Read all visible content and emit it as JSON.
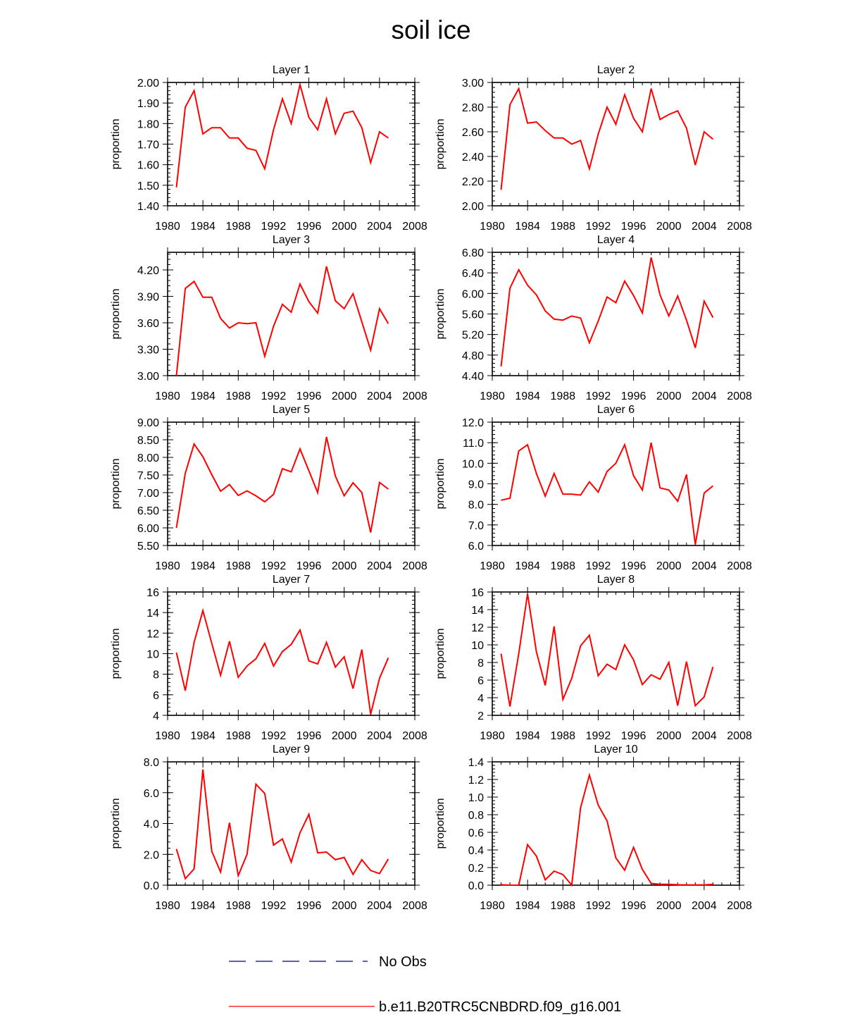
{
  "title": "soil ice",
  "ylabel": "proportion",
  "xlim": [
    1980,
    2008
  ],
  "xticks": [
    "1980",
    "1984",
    "1988",
    "1992",
    "1996",
    "2000",
    "2004",
    "2008"
  ],
  "series_color": "#ff0000",
  "obs_color": "#000080",
  "legend": {
    "obs_label": "No Obs",
    "model_label": "b.e11.B20TRC5CNBDRD.f09_g16.001"
  },
  "chart_data": [
    {
      "type": "line",
      "title": "Layer 1",
      "ylabel": "proportion",
      "ylim": [
        1.4,
        2.0
      ],
      "yticks": [
        "1.40",
        "1.50",
        "1.60",
        "1.70",
        "1.80",
        "1.90",
        "2.00"
      ],
      "ytick_values": [
        1.4,
        1.5,
        1.6,
        1.7,
        1.8,
        1.9,
        2.0
      ],
      "xlim": [
        1980,
        2008
      ],
      "series": [
        {
          "name": "b.e11.B20TRC5CNBDRD.f09_g16.001",
          "x": [
            1981,
            1982,
            1983,
            1984,
            1985,
            1986,
            1987,
            1988,
            1989,
            1990,
            1991,
            1992,
            1993,
            1994,
            1995,
            1996,
            1997,
            1998,
            1999,
            2000,
            2001,
            2002,
            2003,
            2004,
            2005
          ],
          "values": [
            1.49,
            1.88,
            1.96,
            1.75,
            1.78,
            1.78,
            1.73,
            1.73,
            1.68,
            1.67,
            1.58,
            1.77,
            1.92,
            1.8,
            1.99,
            1.83,
            1.77,
            1.92,
            1.75,
            1.85,
            1.86,
            1.78,
            1.61,
            1.76,
            1.73
          ]
        }
      ]
    },
    {
      "type": "line",
      "title": "Layer 2",
      "ylabel": "proportion",
      "ylim": [
        2.0,
        3.0
      ],
      "yticks": [
        "2.00",
        "2.20",
        "2.40",
        "2.60",
        "2.80",
        "3.00"
      ],
      "ytick_values": [
        2.0,
        2.2,
        2.4,
        2.6,
        2.8,
        3.0
      ],
      "xlim": [
        1980,
        2008
      ],
      "series": [
        {
          "name": "b.e11.B20TRC5CNBDRD.f09_g16.001",
          "x": [
            1981,
            1982,
            1983,
            1984,
            1985,
            1986,
            1987,
            1988,
            1989,
            1990,
            1991,
            1992,
            1993,
            1994,
            1995,
            1996,
            1997,
            1998,
            1999,
            2000,
            2001,
            2002,
            2003,
            2004,
            2005
          ],
          "values": [
            2.13,
            2.82,
            2.95,
            2.67,
            2.68,
            2.61,
            2.55,
            2.55,
            2.5,
            2.53,
            2.3,
            2.58,
            2.8,
            2.66,
            2.9,
            2.71,
            2.6,
            2.95,
            2.7,
            2.74,
            2.77,
            2.63,
            2.33,
            2.6,
            2.54
          ]
        }
      ]
    },
    {
      "type": "line",
      "title": "Layer 3",
      "ylabel": "proportion",
      "ylim": [
        3.0,
        4.4
      ],
      "yticks": [
        "3.00",
        "3.30",
        "3.60",
        "3.90",
        "4.20"
      ],
      "ytick_values": [
        3.0,
        3.3,
        3.6,
        3.9,
        4.2
      ],
      "xlim": [
        1980,
        2008
      ],
      "series": [
        {
          "name": "b.e11.B20TRC5CNBDRD.f09_g16.001",
          "x": [
            1981,
            1982,
            1983,
            1984,
            1985,
            1986,
            1987,
            1988,
            1989,
            1990,
            1991,
            1992,
            1993,
            1994,
            1995,
            1996,
            1997,
            1998,
            1999,
            2000,
            2001,
            2002,
            2003,
            2004,
            2005
          ],
          "values": [
            3.0,
            3.99,
            4.07,
            3.89,
            3.89,
            3.65,
            3.54,
            3.6,
            3.59,
            3.6,
            3.22,
            3.56,
            3.81,
            3.72,
            4.04,
            3.84,
            3.71,
            4.24,
            3.85,
            3.76,
            3.93,
            3.61,
            3.29,
            3.76,
            3.59
          ]
        }
      ]
    },
    {
      "type": "line",
      "title": "Layer 4",
      "ylabel": "proportion",
      "ylim": [
        4.4,
        6.8
      ],
      "yticks": [
        "4.40",
        "4.80",
        "5.20",
        "5.60",
        "6.00",
        "6.40",
        "6.80"
      ],
      "ytick_values": [
        4.4,
        4.8,
        5.2,
        5.6,
        6.0,
        6.4,
        6.8
      ],
      "xlim": [
        1980,
        2008
      ],
      "series": [
        {
          "name": "b.e11.B20TRC5CNBDRD.f09_g16.001",
          "x": [
            1981,
            1982,
            1983,
            1984,
            1985,
            1986,
            1987,
            1988,
            1989,
            1990,
            1991,
            1992,
            1993,
            1994,
            1995,
            1996,
            1997,
            1998,
            1999,
            2000,
            2001,
            2002,
            2003,
            2004,
            2005
          ],
          "values": [
            4.58,
            6.1,
            6.46,
            6.16,
            5.97,
            5.66,
            5.5,
            5.48,
            5.56,
            5.52,
            5.04,
            5.46,
            5.93,
            5.82,
            6.24,
            5.96,
            5.62,
            6.7,
            5.97,
            5.56,
            5.95,
            5.48,
            4.94,
            5.85,
            5.53
          ]
        }
      ]
    },
    {
      "type": "line",
      "title": "Layer 5",
      "ylabel": "proportion",
      "ylim": [
        5.5,
        9.0
      ],
      "yticks": [
        "5.50",
        "6.00",
        "6.50",
        "7.00",
        "7.50",
        "8.00",
        "8.50",
        "9.00"
      ],
      "ytick_values": [
        5.5,
        6.0,
        6.5,
        7.0,
        7.5,
        8.0,
        8.5,
        9.0
      ],
      "xlim": [
        1980,
        2008
      ],
      "series": [
        {
          "name": "b.e11.B20TRC5CNBDRD.f09_g16.001",
          "x": [
            1981,
            1982,
            1983,
            1984,
            1985,
            1986,
            1987,
            1988,
            1989,
            1990,
            1991,
            1992,
            1993,
            1994,
            1995,
            1996,
            1997,
            1998,
            1999,
            2000,
            2001,
            2002,
            2003,
            2004,
            2005
          ],
          "values": [
            6.0,
            7.55,
            8.38,
            8.02,
            7.51,
            7.04,
            7.23,
            6.92,
            7.05,
            6.91,
            6.74,
            6.95,
            7.68,
            7.59,
            8.24,
            7.62,
            7.0,
            8.58,
            7.47,
            6.91,
            7.28,
            7.0,
            5.87,
            7.29,
            7.1
          ]
        }
      ]
    },
    {
      "type": "line",
      "title": "Layer 6",
      "ylabel": "proportion",
      "ylim": [
        6.0,
        12.0
      ],
      "yticks": [
        "6.0",
        "7.0",
        "8.0",
        "9.0",
        "10.0",
        "11.0",
        "12.0"
      ],
      "ytick_values": [
        6.0,
        7.0,
        8.0,
        9.0,
        10.0,
        11.0,
        12.0
      ],
      "xlim": [
        1980,
        2008
      ],
      "series": [
        {
          "name": "b.e11.B20TRC5CNBDRD.f09_g16.001",
          "x": [
            1981,
            1982,
            1983,
            1984,
            1985,
            1986,
            1987,
            1988,
            1989,
            1990,
            1991,
            1992,
            1993,
            1994,
            1995,
            1996,
            1997,
            1998,
            1999,
            2000,
            2001,
            2002,
            2003,
            2004,
            2005
          ],
          "values": [
            8.2,
            8.3,
            10.6,
            10.9,
            9.5,
            8.4,
            9.5,
            8.5,
            8.5,
            8.45,
            9.1,
            8.6,
            9.6,
            10.0,
            10.9,
            9.4,
            8.7,
            11.0,
            8.8,
            8.7,
            8.15,
            9.45,
            6.05,
            8.55,
            8.9
          ]
        }
      ]
    },
    {
      "type": "line",
      "title": "Layer 7",
      "ylabel": "proportion",
      "ylim": [
        4,
        16
      ],
      "yticks": [
        "4",
        "6",
        "8",
        "10",
        "12",
        "14",
        "16"
      ],
      "ytick_values": [
        4,
        6,
        8,
        10,
        12,
        14,
        16
      ],
      "xlim": [
        1980,
        2008
      ],
      "series": [
        {
          "name": "b.e11.B20TRC5CNBDRD.f09_g16.001",
          "x": [
            1981,
            1982,
            1983,
            1984,
            1985,
            1986,
            1987,
            1988,
            1989,
            1990,
            1991,
            1992,
            1993,
            1994,
            1995,
            1996,
            1997,
            1998,
            1999,
            2000,
            2001,
            2002,
            2003,
            2004,
            2005
          ],
          "values": [
            10.1,
            6.4,
            11.1,
            14.2,
            11.0,
            7.9,
            11.2,
            7.7,
            8.8,
            9.5,
            11.0,
            8.8,
            10.2,
            10.9,
            12.3,
            9.3,
            9.0,
            11.1,
            8.7,
            9.7,
            6.6,
            10.4,
            4.1,
            7.6,
            9.6
          ]
        }
      ]
    },
    {
      "type": "line",
      "title": "Layer 8",
      "ylabel": "proportion",
      "ylim": [
        2,
        16
      ],
      "yticks": [
        "2",
        "4",
        "6",
        "8",
        "10",
        "12",
        "14",
        "16"
      ],
      "ytick_values": [
        2,
        4,
        6,
        8,
        10,
        12,
        14,
        16
      ],
      "xlim": [
        1980,
        2008
      ],
      "series": [
        {
          "name": "b.e11.B20TRC5CNBDRD.f09_g16.001",
          "x": [
            1981,
            1982,
            1983,
            1984,
            1985,
            1986,
            1987,
            1988,
            1989,
            1990,
            1991,
            1992,
            1993,
            1994,
            1995,
            1996,
            1997,
            1998,
            1999,
            2000,
            2001,
            2002,
            2003,
            2004,
            2005
          ],
          "values": [
            9.0,
            3.0,
            9.0,
            15.8,
            9.2,
            5.4,
            12.1,
            3.8,
            6.2,
            9.9,
            11.1,
            6.5,
            7.8,
            7.2,
            10.0,
            8.3,
            5.5,
            6.6,
            6.1,
            8.0,
            3.1,
            8.1,
            3.1,
            4.1,
            7.5
          ]
        }
      ]
    },
    {
      "type": "line",
      "title": "Layer 9",
      "ylabel": "proportion",
      "ylim": [
        0.0,
        8.0
      ],
      "yticks": [
        "0.0",
        "2.0",
        "4.0",
        "6.0",
        "8.0"
      ],
      "ytick_values": [
        0.0,
        2.0,
        4.0,
        6.0,
        8.0
      ],
      "xlim": [
        1980,
        2008
      ],
      "series": [
        {
          "name": "b.e11.B20TRC5CNBDRD.f09_g16.001",
          "x": [
            1981,
            1982,
            1983,
            1984,
            1985,
            1986,
            1987,
            1988,
            1989,
            1990,
            1991,
            1992,
            1993,
            1994,
            1995,
            1996,
            1997,
            1998,
            1999,
            2000,
            2001,
            2002,
            2003,
            2004,
            2005
          ],
          "values": [
            2.35,
            0.42,
            1.05,
            7.5,
            2.2,
            0.85,
            4.05,
            0.62,
            2.0,
            6.55,
            5.95,
            2.6,
            3.0,
            1.5,
            3.4,
            4.6,
            2.1,
            2.15,
            1.65,
            1.8,
            0.7,
            1.65,
            0.95,
            0.75,
            1.7
          ]
        }
      ]
    },
    {
      "type": "line",
      "title": "Layer 10",
      "ylabel": "proportion",
      "ylim": [
        0.0,
        1.4
      ],
      "yticks": [
        "0.0",
        "0.2",
        "0.4",
        "0.6",
        "0.8",
        "1.0",
        "1.2",
        "1.4"
      ],
      "ytick_values": [
        0.0,
        0.2,
        0.4,
        0.6,
        0.8,
        1.0,
        1.2,
        1.4
      ],
      "xlim": [
        1980,
        2008
      ],
      "series": [
        {
          "name": "b.e11.B20TRC5CNBDRD.f09_g16.001",
          "x": [
            1981,
            1982,
            1983,
            1984,
            1985,
            1986,
            1987,
            1988,
            1989,
            1990,
            1991,
            1992,
            1993,
            1994,
            1995,
            1996,
            1997,
            1998,
            1999,
            2000,
            2001,
            2002,
            2003,
            2004,
            2005
          ],
          "values": [
            0.005,
            0.0,
            0.0,
            0.46,
            0.33,
            0.06,
            0.16,
            0.12,
            0.0,
            0.88,
            1.25,
            0.91,
            0.73,
            0.31,
            0.17,
            0.43,
            0.18,
            0.02,
            0.01,
            0.01,
            0.005,
            0.003,
            0.003,
            0.003,
            0.01
          ]
        }
      ]
    }
  ]
}
